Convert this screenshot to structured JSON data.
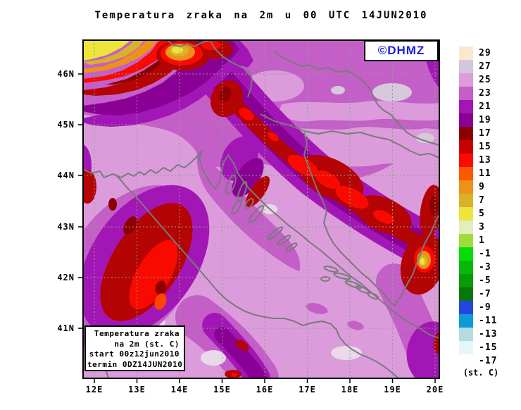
{
  "title": "Temperatura zraka na 2m u 00 UTC 14JUN2010",
  "watermark": "©DHMZ",
  "legend_box": {
    "lines": [
      "Temperatura zraka",
      "na 2m (st. C)",
      "start 00z12jun2010",
      "termin 0DZ14JUN2010"
    ]
  },
  "axes": {
    "lat_labels": [
      "46N",
      "45N",
      "44N",
      "43N",
      "42N",
      "41N"
    ],
    "lon_labels": [
      "12E",
      "13E",
      "14E",
      "15E",
      "16E",
      "17E",
      "18E",
      "19E",
      "20E"
    ]
  },
  "colorbar": {
    "unit_label": "(st. C)",
    "entries": [
      {
        "label": "29",
        "color": "#FBE8D0"
      },
      {
        "label": "27",
        "color": "#D3C6DD"
      },
      {
        "label": "25",
        "color": "#DC9CDC"
      },
      {
        "label": "23",
        "color": "#C45FC8"
      },
      {
        "label": "21",
        "color": "#A316B6"
      },
      {
        "label": "19",
        "color": "#8A0094"
      },
      {
        "label": "17",
        "color": "#8E0000"
      },
      {
        "label": "15",
        "color": "#C80000"
      },
      {
        "label": "13",
        "color": "#FB0A00"
      },
      {
        "label": "11",
        "color": "#FB5900"
      },
      {
        "label": "9",
        "color": "#EE9118"
      },
      {
        "label": "7",
        "color": "#D9B22A"
      },
      {
        "label": "5",
        "color": "#EDE43C"
      },
      {
        "label": "3",
        "color": "#E3EDBE"
      },
      {
        "label": "1",
        "color": "#9EDC3A"
      },
      {
        "label": "-1",
        "color": "#06DD06"
      },
      {
        "label": "-3",
        "color": "#08B808"
      },
      {
        "label": "-5",
        "color": "#089A08"
      },
      {
        "label": "-7",
        "color": "#067806"
      },
      {
        "label": "-9",
        "color": "#2347DE"
      },
      {
        "label": "-11",
        "color": "#0E9AD8"
      },
      {
        "label": "-13",
        "color": "#B5DBE0"
      },
      {
        "label": "-15",
        "color": "#E4F6F8"
      },
      {
        "label": "-17",
        "color": "#FFFFFF"
      }
    ]
  },
  "colors": {
    "dhmz_blue": "#1C1CE8",
    "sea_plum": "#DC9CDC",
    "orchid": "#C45FC8",
    "purple": "#A316B6",
    "dark_purple": "#8A0094",
    "dark_red": "#B40404",
    "bright_red": "#F80A00",
    "coastline_gray": "#7A7A7A"
  }
}
